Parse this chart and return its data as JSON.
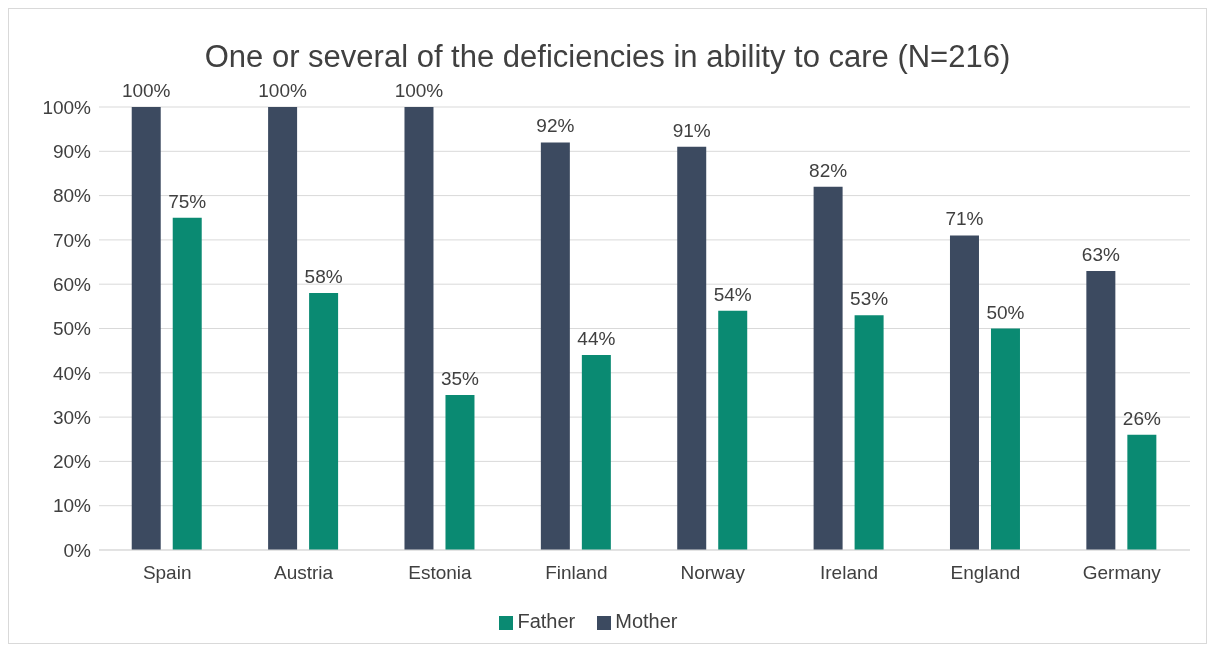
{
  "chart_data": {
    "type": "bar",
    "title": "One or several of the deficiencies in ability to care (N=216)",
    "categories": [
      "Spain",
      "Austria",
      "Estonia",
      "Finland",
      "Norway",
      "Ireland",
      "England",
      "Germany"
    ],
    "series": [
      {
        "name": "Mother",
        "color": "#3c4a60",
        "values": [
          100,
          100,
          100,
          92,
          91,
          82,
          71,
          63
        ],
        "value_labels": [
          "100%",
          "100%",
          "100%",
          "92%",
          "91%",
          "82%",
          "71%",
          "63%"
        ]
      },
      {
        "name": "Father",
        "color": "#0a8a72",
        "values": [
          75,
          58,
          35,
          44,
          54,
          53,
          50,
          26
        ],
        "value_labels": [
          "75%",
          "58%",
          "35%",
          "44%",
          "54%",
          "53%",
          "50%",
          "26%"
        ]
      }
    ],
    "ylim": [
      0,
      100
    ],
    "yticks": [
      {
        "value": 0,
        "label": "0%"
      },
      {
        "value": 10,
        "label": "10%"
      },
      {
        "value": 20,
        "label": "20%"
      },
      {
        "value": 30,
        "label": "30%"
      },
      {
        "value": 40,
        "label": "40%"
      },
      {
        "value": 50,
        "label": "50%"
      },
      {
        "value": 60,
        "label": "60%"
      },
      {
        "value": 70,
        "label": "70%"
      },
      {
        "value": 80,
        "label": "80%"
      },
      {
        "value": 90,
        "label": "90%"
      },
      {
        "value": 100,
        "label": "100%"
      }
    ],
    "grid": "y",
    "legend": "bottom"
  }
}
